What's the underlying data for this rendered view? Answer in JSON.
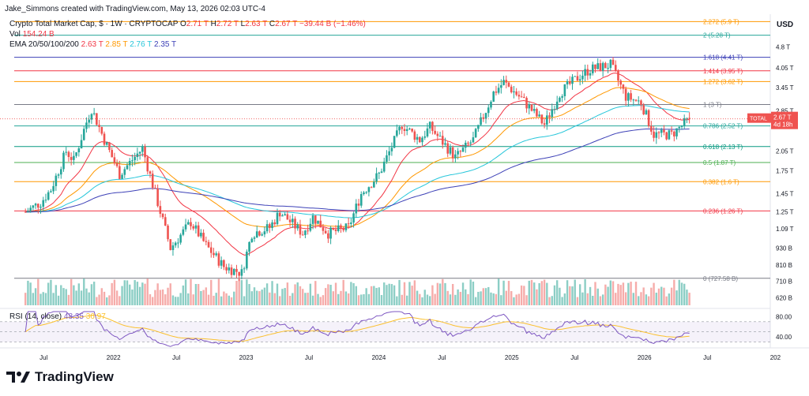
{
  "header": {
    "credit": "Jake_Simmons created with TradingView.com, May 13, 2026 02:03 UTC-4"
  },
  "legend": {
    "symbol": "Crypto Total Market Cap, $ · 1W · CRYPTOCAP",
    "o_label": "O",
    "o_value": "2.71 T",
    "h_label": "H",
    "h_value": "2.72 T",
    "l_label": "L",
    "l_value": "2.63 T",
    "c_label": "C",
    "c_value": "2.67 T",
    "change": "−39.44 B (−1.46%)",
    "vol_label": "Vol",
    "vol_value": "154.24 B",
    "ema_label": "EMA 20/50/100/200",
    "ema_values": [
      "2.63 T",
      "2.85 T",
      "2.76 T",
      "2.35 T"
    ],
    "rsi_label": "RSI (14, close)",
    "rsi_value": "48.35",
    "rsi_ma_value": "36.97"
  },
  "brand": {
    "name": "TradingView"
  },
  "currency": "USD",
  "colors": {
    "up": "#26a69a",
    "down": "#ef5350",
    "ema20": "#f23645",
    "ema50": "#ff9800",
    "ema100": "#26c6da",
    "ema200": "#3d41b7",
    "rsi": "#7e57c2",
    "rsi_ma": "#fbc02d"
  },
  "chart_data": {
    "type": "candlestick",
    "title": "Crypto Total Market Cap, $ · 1W · CRYPTOCAP",
    "y_scale": "log",
    "ylim": [
      0.58,
      6.6
    ],
    "y_unit": "T",
    "y_ticks": [
      {
        "v": 4.8,
        "label": "4.8 T"
      },
      {
        "v": 4.05,
        "label": "4.05 T"
      },
      {
        "v": 3.45,
        "label": "3.45 T"
      },
      {
        "v": 2.85,
        "label": "2.85 T"
      },
      {
        "v": 2.05,
        "label": "2.05 T"
      },
      {
        "v": 1.75,
        "label": "1.75 T"
      },
      {
        "v": 1.45,
        "label": "1.45 T"
      },
      {
        "v": 1.25,
        "label": "1.25 T"
      },
      {
        "v": 1.09,
        "label": "1.09 T"
      },
      {
        "v": 0.93,
        "label": "930 B"
      },
      {
        "v": 0.81,
        "label": "810 B"
      },
      {
        "v": 0.71,
        "label": "710 B"
      },
      {
        "v": 0.62,
        "label": "620 B"
      }
    ],
    "x_ticks": [
      {
        "date": "2021-07",
        "label": "Jul"
      },
      {
        "date": "2022-01",
        "label": "2022"
      },
      {
        "date": "2022-07",
        "label": "Jul"
      },
      {
        "date": "2023-01",
        "label": "2023"
      },
      {
        "date": "2023-07",
        "label": "Jul"
      },
      {
        "date": "2024-01",
        "label": "2024"
      },
      {
        "date": "2024-07",
        "label": "Jul"
      },
      {
        "date": "2025-01",
        "label": "2025"
      },
      {
        "date": "2025-07",
        "label": "Jul"
      },
      {
        "date": "2026-01",
        "label": "2026"
      },
      {
        "date": "2026-07",
        "label": "Jul"
      },
      {
        "date": "2027-01",
        "label": "202"
      }
    ],
    "fib_levels": [
      {
        "ratio": "2.272",
        "value": 5.9,
        "label": "2.272 (5.9 T)",
        "color": "#ff9800"
      },
      {
        "ratio": "2",
        "value": 5.28,
        "label": "2 (5.28 T)",
        "color": "#26a69a"
      },
      {
        "ratio": "1.618",
        "value": 4.41,
        "label": "1.618 (4.41 T)",
        "color": "#3d41b7"
      },
      {
        "ratio": "1.414",
        "value": 3.95,
        "label": "1.414 (3.95 T)",
        "color": "#f23645"
      },
      {
        "ratio": "1.272",
        "value": 3.62,
        "label": "1.272 (3.62 T)",
        "color": "#ff9800"
      },
      {
        "ratio": "1",
        "value": 3.0,
        "label": "1 (3 T)",
        "color": "#787b86"
      },
      {
        "ratio": "0.786",
        "value": 2.52,
        "label": "0.786 (2.52 T)",
        "color": "#26a69a"
      },
      {
        "ratio": "0.618",
        "value": 2.13,
        "label": "0.618 (2.13 T)",
        "color": "#089981"
      },
      {
        "ratio": "0.5",
        "value": 1.87,
        "label": "0.5 (1.87 T)",
        "color": "#4caf50"
      },
      {
        "ratio": "0.382",
        "value": 1.6,
        "label": "0.382 (1.6 T)",
        "color": "#ff9800"
      },
      {
        "ratio": "0.236",
        "value": 1.26,
        "label": "0.236 (1.26 T)",
        "color": "#f23645"
      },
      {
        "ratio": "0",
        "value": 0.72758,
        "label": "0 (727.58 B)",
        "color": "#787b86"
      }
    ],
    "current_price": {
      "label": "TOTAL",
      "value": "2.67 T",
      "countdown": "4d 18h",
      "v": 2.67
    },
    "price_keypoints": [
      {
        "date": "2021-05-10",
        "close": 1.25
      },
      {
        "date": "2021-06-21",
        "close": 1.35
      },
      {
        "date": "2021-07-19",
        "close": 1.5
      },
      {
        "date": "2021-08-30",
        "close": 2.05
      },
      {
        "date": "2021-09-20",
        "close": 1.9
      },
      {
        "date": "2021-10-25",
        "close": 2.6
      },
      {
        "date": "2021-11-08",
        "close": 2.9
      },
      {
        "date": "2021-12-13",
        "close": 2.25
      },
      {
        "date": "2022-01-24",
        "close": 1.7
      },
      {
        "date": "2022-03-28",
        "close": 2.1
      },
      {
        "date": "2022-05-09",
        "close": 1.35
      },
      {
        "date": "2022-06-13",
        "close": 0.93
      },
      {
        "date": "2022-08-08",
        "close": 1.15
      },
      {
        "date": "2022-09-19",
        "close": 0.95
      },
      {
        "date": "2022-11-07",
        "close": 0.8
      },
      {
        "date": "2022-12-26",
        "close": 0.76
      },
      {
        "date": "2023-01-23",
        "close": 1.05
      },
      {
        "date": "2023-03-13",
        "close": 1.1
      },
      {
        "date": "2023-04-10",
        "close": 1.25
      },
      {
        "date": "2023-06-12",
        "close": 1.05
      },
      {
        "date": "2023-07-10",
        "close": 1.2
      },
      {
        "date": "2023-08-21",
        "close": 1.05
      },
      {
        "date": "2023-10-16",
        "close": 1.1
      },
      {
        "date": "2023-11-20",
        "close": 1.45
      },
      {
        "date": "2024-01-08",
        "close": 1.7
      },
      {
        "date": "2024-03-11",
        "close": 2.55
      },
      {
        "date": "2024-04-29",
        "close": 2.25
      },
      {
        "date": "2024-05-27",
        "close": 2.5
      },
      {
        "date": "2024-08-05",
        "close": 1.95
      },
      {
        "date": "2024-09-23",
        "close": 2.25
      },
      {
        "date": "2024-11-18",
        "close": 3.3
      },
      {
        "date": "2024-12-16",
        "close": 3.6
      },
      {
        "date": "2025-02-03",
        "close": 3.15
      },
      {
        "date": "2025-04-07",
        "close": 2.55
      },
      {
        "date": "2025-05-19",
        "close": 3.3
      },
      {
        "date": "2025-07-14",
        "close": 3.8
      },
      {
        "date": "2025-08-11",
        "close": 4.0
      },
      {
        "date": "2025-10-06",
        "close": 4.15
      },
      {
        "date": "2025-11-17",
        "close": 3.2
      },
      {
        "date": "2025-12-29",
        "close": 3.05
      },
      {
        "date": "2026-02-02",
        "close": 2.35
      },
      {
        "date": "2026-03-23",
        "close": 2.35
      },
      {
        "date": "2026-05-11",
        "close": 2.67
      }
    ],
    "rsi_pane": {
      "ylim": [
        20,
        90
      ],
      "ticks": [
        {
          "v": 80,
          "label": "80.00"
        },
        {
          "v": 40,
          "label": "40.00"
        }
      ],
      "band": [
        30,
        70
      ]
    }
  }
}
